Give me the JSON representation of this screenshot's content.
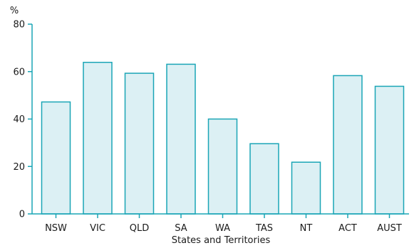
{
  "chart_data": {
    "type": "bar",
    "title": "",
    "xlabel": "States and Territories",
    "ylabel": "%",
    "ylim": [
      0,
      80
    ],
    "yticks": [
      0,
      20,
      40,
      60,
      80
    ],
    "grid": false,
    "categories": [
      "NSW",
      "VIC",
      "QLD",
      "SA",
      "WA",
      "TAS",
      "NT",
      "ACT",
      "AUST"
    ],
    "values": [
      47.2,
      63.9,
      59.3,
      63.1,
      40.0,
      29.6,
      21.8,
      58.3,
      53.8
    ],
    "colors": {
      "bar_fill": "#dcf0f4",
      "bar_stroke": "#1aa5b6",
      "axis": "#1aa5b6"
    }
  }
}
